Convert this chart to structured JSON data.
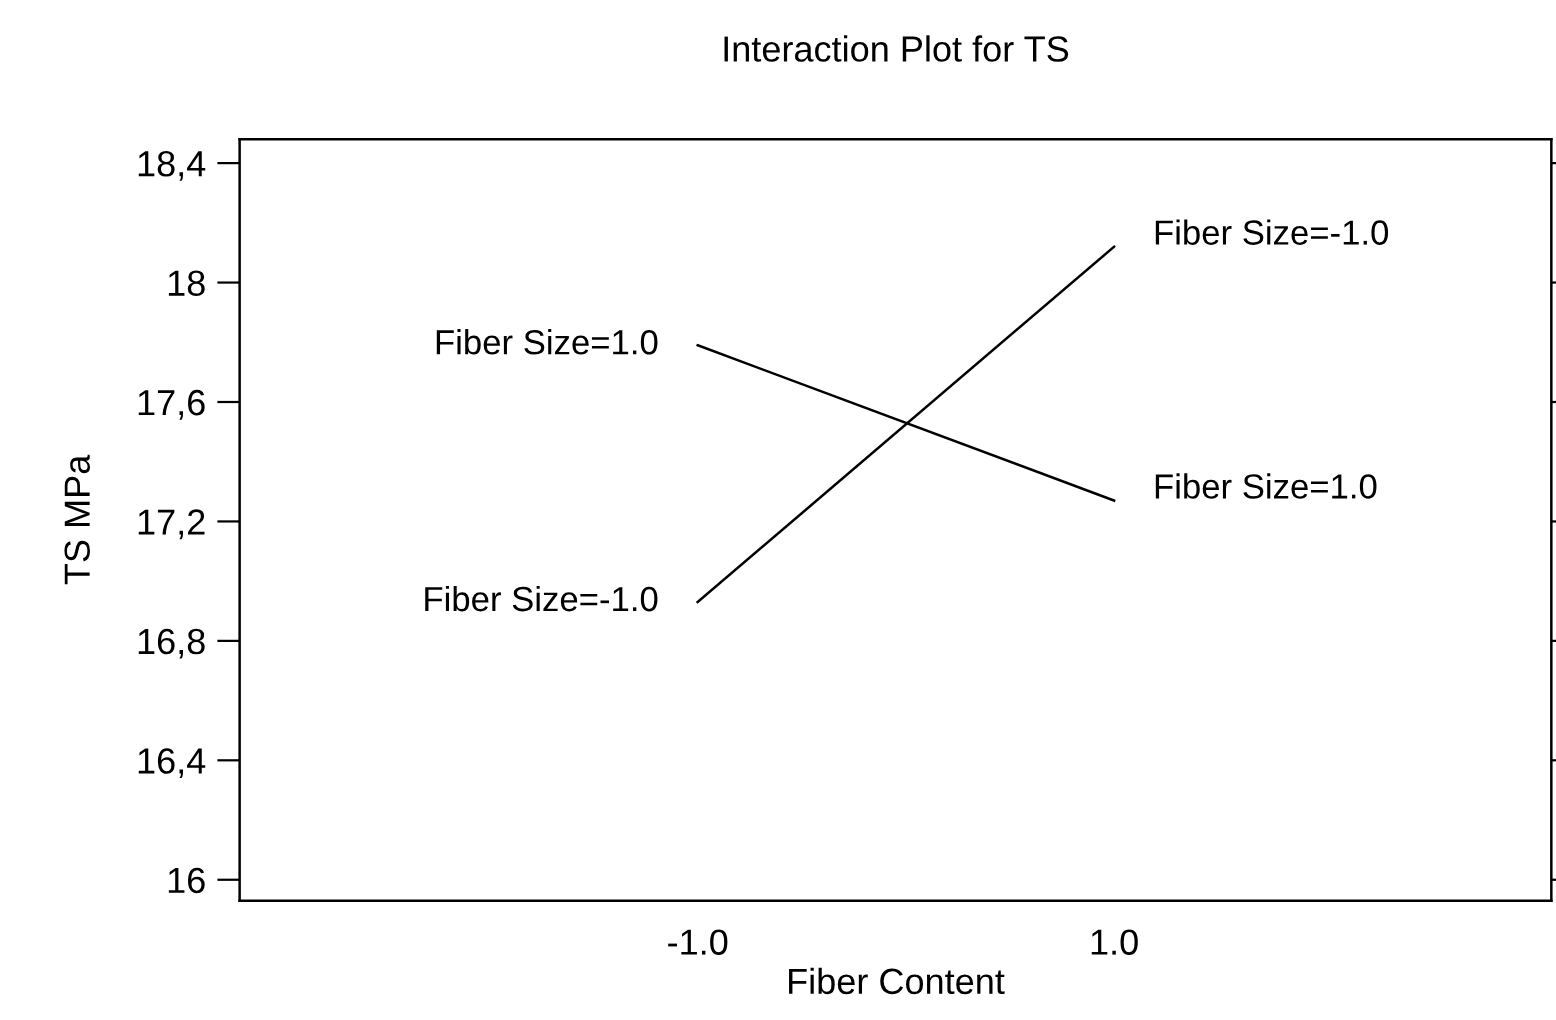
{
  "chart_data": {
    "type": "line",
    "title": "Interaction Plot for TS",
    "xlabel": "Fiber Content",
    "ylabel": "TS MPa",
    "x": [
      -1.0,
      1.0
    ],
    "series": [
      {
        "name": "Fiber Size=1.0",
        "color": "#000000",
        "values": [
          17.79,
          17.27
        ]
      },
      {
        "name": "Fiber Size=-1.0",
        "color": "#000000",
        "values": [
          16.93,
          18.12
        ]
      }
    ],
    "xlim": [
      -3.2,
      3.1
    ],
    "xticks": [
      {
        "value": -1.0,
        "label": "-1.0"
      },
      {
        "value": 1.0,
        "label": "1.0"
      }
    ],
    "ylim": [
      15.93,
      18.48
    ],
    "yticks": [
      16,
      {
        "value": 16.4,
        "label": "16,4"
      },
      {
        "value": 16.8,
        "label": "16,8"
      },
      {
        "value": 17.2,
        "label": "17,2"
      },
      {
        "value": 17.6,
        "label": "17,6"
      },
      18,
      {
        "value": 18.4,
        "label": "18,4"
      }
    ],
    "grid": false,
    "legend": false,
    "marker": "none",
    "line_style": "solid"
  }
}
